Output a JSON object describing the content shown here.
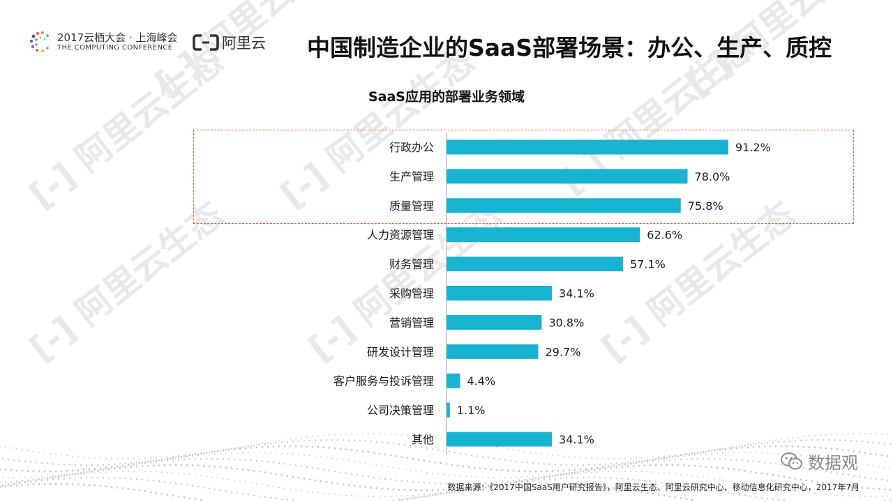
{
  "header": {
    "conference_cn": "2017云栖大会 · 上海峰会",
    "conference_en": "THE COMPUTING CONFERENCE",
    "brand": "阿里云",
    "title": "中国制造企业的SaaS部署场景：办公、生产、质控"
  },
  "watermark": {
    "text": "阿里云生态"
  },
  "chart_data": {
    "type": "bar",
    "orientation": "horizontal",
    "title": "SaaS应用的部署业务领域",
    "categories": [
      "行政办公",
      "生产管理",
      "质量管理",
      "人力资源管理",
      "财务管理",
      "采购管理",
      "营销管理",
      "研发设计管理",
      "客户服务与投诉管理",
      "公司决策管理",
      "其他"
    ],
    "values": [
      91.2,
      78.0,
      75.8,
      62.6,
      57.1,
      34.1,
      30.8,
      29.7,
      4.4,
      1.1,
      34.1
    ],
    "value_labels": [
      "91.2%",
      "78.0%",
      "75.8%",
      "62.6%",
      "57.1%",
      "34.1%",
      "30.8%",
      "29.7%",
      "4.4%",
      "1.1%",
      "34.1%"
    ],
    "unit": "%",
    "bar_color": "#17b3d0",
    "highlight_color": "#e06040",
    "highlighted_categories": [
      "行政办公",
      "生产管理",
      "质量管理"
    ],
    "xlim": [
      0,
      100
    ],
    "grid": false,
    "legend": "none"
  },
  "footer": {
    "wechat_account": "数据观",
    "source": "数据来源：《2017中国SaaS用户研究报告》，阿里云生态、阿里云研究中心、移动信息化研究中心，2017年7月"
  }
}
